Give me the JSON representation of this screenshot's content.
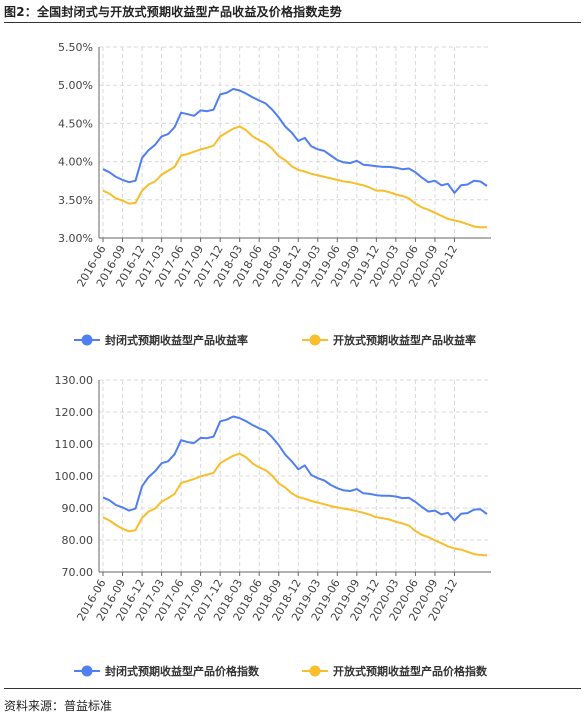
{
  "figure": {
    "title": "图2：全国封闭式与开放式预期收益型产品收益及价格指数走势",
    "source": "资料来源：普益标准"
  },
  "colors": {
    "closed": "#4f7ff0",
    "open": "#f8be2b",
    "grid": "#d9d9d9",
    "axis": "#666666"
  },
  "chart_data": [
    {
      "type": "line",
      "title": "",
      "xlabel": "",
      "ylabel": "",
      "x_ticks": [
        "2016-06",
        "2016-09",
        "2016-12",
        "2017-03",
        "2017-06",
        "2017-09",
        "2017-12",
        "2018-03",
        "2018-06",
        "2018-09",
        "2018-12",
        "2019-03",
        "2019-06",
        "2019-09",
        "2019-12",
        "2020-03",
        "2020-06",
        "2020-09",
        "2020-12"
      ],
      "y_ticks": [
        "3.00%",
        "3.50%",
        "4.00%",
        "4.50%",
        "5.00%",
        "5.50%"
      ],
      "ylim": [
        3.0,
        5.5
      ],
      "grid": true,
      "legend": "bottom",
      "series": [
        {
          "name": "封闭式预期收益型产品收益率",
          "color": "#4f7ff0",
          "values": [
            3.9,
            3.86,
            3.8,
            3.76,
            3.73,
            3.75,
            4.05,
            4.15,
            4.22,
            4.33,
            4.36,
            4.45,
            4.64,
            4.62,
            4.6,
            4.67,
            4.66,
            4.68,
            4.88,
            4.9,
            4.95,
            4.93,
            4.89,
            4.84,
            4.8,
            4.76,
            4.68,
            4.58,
            4.46,
            4.38,
            4.27,
            4.31,
            4.2,
            4.16,
            4.14,
            4.08,
            4.02,
            3.99,
            3.98,
            4.01,
            3.96,
            3.95,
            3.94,
            3.93,
            3.93,
            3.92,
            3.9,
            3.91,
            3.86,
            3.79,
            3.73,
            3.75,
            3.69,
            3.71,
            3.59,
            3.69,
            3.7,
            3.75,
            3.74,
            3.68
          ]
        },
        {
          "name": "开放式预期收益型产品收益率",
          "color": "#f8be2b",
          "values": [
            3.62,
            3.58,
            3.52,
            3.49,
            3.45,
            3.46,
            3.62,
            3.7,
            3.74,
            3.83,
            3.88,
            3.93,
            4.08,
            4.1,
            4.13,
            4.16,
            4.18,
            4.21,
            4.33,
            4.38,
            4.43,
            4.46,
            4.41,
            4.33,
            4.28,
            4.24,
            4.17,
            4.07,
            4.02,
            3.94,
            3.89,
            3.87,
            3.84,
            3.82,
            3.8,
            3.78,
            3.76,
            3.74,
            3.73,
            3.71,
            3.69,
            3.66,
            3.62,
            3.62,
            3.6,
            3.57,
            3.55,
            3.52,
            3.45,
            3.4,
            3.37,
            3.33,
            3.29,
            3.25,
            3.23,
            3.21,
            3.18,
            3.15,
            3.14,
            3.14
          ]
        }
      ]
    },
    {
      "type": "line",
      "title": "",
      "xlabel": "",
      "ylabel": "",
      "x_ticks": [
        "2016-06",
        "2016-09",
        "2016-12",
        "2017-03",
        "2017-06",
        "2017-09",
        "2017-12",
        "2018-03",
        "2018-06",
        "2018-09",
        "2018-12",
        "2019-03",
        "2019-06",
        "2019-09",
        "2019-12",
        "2020-03",
        "2020-06",
        "2020-09",
        "2020-12"
      ],
      "y_ticks": [
        "70.00",
        "80.00",
        "90.00",
        "100.00",
        "110.00",
        "120.00",
        "130.00"
      ],
      "ylim": [
        70,
        130
      ],
      "grid": true,
      "legend": "bottom",
      "series": [
        {
          "name": "封闭式预期收益型产品价格指数",
          "color": "#4f7ff0",
          "values": [
            93.3,
            92.4,
            90.9,
            90.2,
            89.2,
            89.8,
            96.8,
            99.7,
            101.5,
            104.0,
            104.6,
            106.8,
            111.2,
            110.6,
            110.3,
            111.9,
            111.8,
            112.3,
            117.1,
            117.6,
            118.6,
            118.1,
            117.1,
            115.9,
            114.9,
            114.1,
            112.1,
            109.7,
            106.7,
            104.6,
            102.1,
            103.3,
            100.3,
            99.3,
            98.6,
            97.2,
            96.2,
            95.5,
            95.3,
            95.9,
            94.6,
            94.4,
            94.0,
            93.8,
            93.8,
            93.6,
            93.1,
            93.2,
            91.9,
            90.3,
            88.9,
            89.2,
            88.0,
            88.5,
            86.1,
            88.2,
            88.4,
            89.5,
            89.6,
            88.1
          ]
        },
        {
          "name": "开放式预期收益型产品价格指数",
          "color": "#f8be2b",
          "values": [
            87.1,
            86.1,
            84.7,
            83.5,
            82.7,
            83.1,
            86.9,
            88.9,
            89.8,
            92.0,
            93.1,
            94.4,
            97.8,
            98.4,
            99.1,
            99.9,
            100.4,
            101.0,
            104.0,
            105.2,
            106.3,
            107.0,
            105.8,
            103.9,
            102.7,
            101.8,
            100.1,
            97.7,
            96.4,
            94.6,
            93.4,
            92.9,
            92.2,
            91.7,
            91.2,
            90.6,
            90.2,
            89.8,
            89.5,
            89.0,
            88.5,
            87.9,
            87.1,
            86.8,
            86.4,
            85.7,
            85.2,
            84.5,
            82.8,
            81.6,
            80.9,
            79.9,
            79.0,
            78.0,
            77.4,
            77.0,
            76.3,
            75.6,
            75.3,
            75.2
          ]
        }
      ]
    }
  ]
}
